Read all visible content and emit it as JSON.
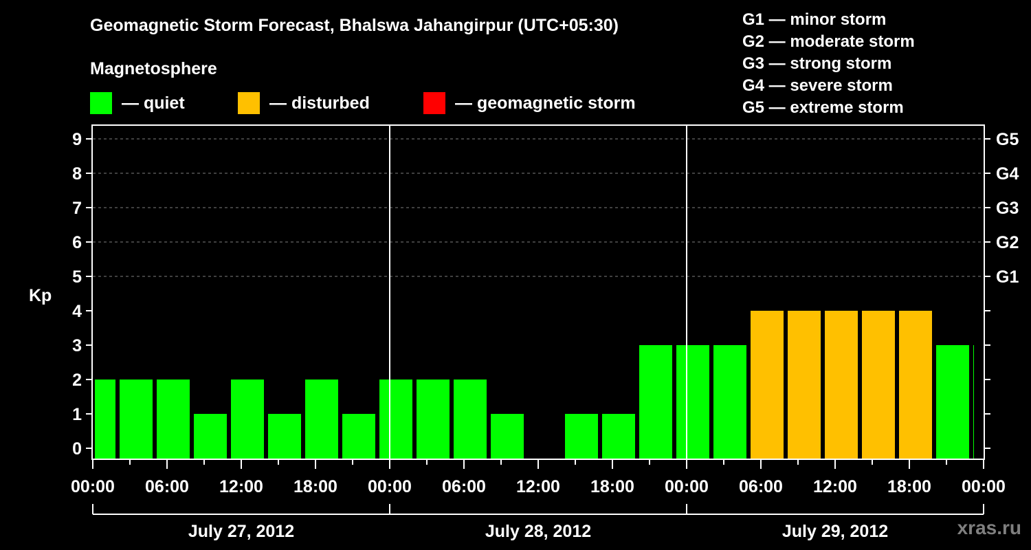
{
  "header": {
    "title": "Geomagnetic Storm Forecast, Bhalswa Jahangirpur (UTC+05:30)",
    "subtitle": "Magnetosphere"
  },
  "legend": {
    "items": [
      {
        "label": "— quiet",
        "color": "#00ff00"
      },
      {
        "label": "— disturbed",
        "color": "#ffc000"
      },
      {
        "label": "— geomagnetic storm",
        "color": "#ff0000"
      }
    ]
  },
  "g_legend": [
    "G1 — minor storm",
    "G2 — moderate storm",
    "G3 — strong storm",
    "G4 — severe storm",
    "G5 — extreme storm"
  ],
  "watermark": "xras.ru",
  "chart_data": {
    "type": "bar",
    "title": "Geomagnetic Storm Forecast, Bhalswa Jahangirpur (UTC+05:30)",
    "ylabel": "Kp",
    "xlabel": "",
    "ylim": [
      0,
      9
    ],
    "y_ticks": [
      0,
      1,
      2,
      3,
      4,
      5,
      6,
      7,
      8,
      9
    ],
    "right_axis_ticks": [
      {
        "kp": 5,
        "label": "G1"
      },
      {
        "kp": 6,
        "label": "G2"
      },
      {
        "kp": 7,
        "label": "G3"
      },
      {
        "kp": 8,
        "label": "G4"
      },
      {
        "kp": 9,
        "label": "G5"
      }
    ],
    "grid": "dashed horizontal at Kp 5-9",
    "x_tick_labels": [
      "00:00",
      "06:00",
      "12:00",
      "18:00",
      "00:00",
      "06:00",
      "12:00",
      "18:00",
      "00:00",
      "06:00",
      "12:00",
      "18:00",
      "00:00"
    ],
    "date_labels": [
      "July 27, 2012",
      "July 28, 2012",
      "July 29, 2012"
    ],
    "bar_interval_hours": 3,
    "categories": [
      "Jul27 00:00-02:00",
      "Jul27 02:00",
      "Jul27 05:00",
      "Jul27 08:00",
      "Jul27 11:00",
      "Jul27 14:00",
      "Jul27 17:00",
      "Jul27 20:00",
      "Jul27 23:00",
      "Jul28 02:00",
      "Jul28 05:00",
      "Jul28 08:00",
      "Jul28 11:00",
      "Jul28 14:00",
      "Jul28 17:00",
      "Jul28 20:00",
      "Jul28 23:00",
      "Jul29 02:00",
      "Jul29 05:00",
      "Jul29 08:00",
      "Jul29 11:00",
      "Jul29 14:00",
      "Jul29 17:00",
      "Jul29 20:00",
      "Jul29 23:00"
    ],
    "values": [
      2,
      2,
      2,
      1,
      2,
      1,
      2,
      1,
      2,
      2,
      2,
      1,
      0,
      1,
      1,
      3,
      3,
      3,
      4,
      4,
      4,
      4,
      4,
      3,
      3
    ],
    "colors": {
      "quiet": "#00ff00",
      "disturbed": "#ffc000",
      "storm": "#ff0000"
    },
    "status": [
      "quiet",
      "quiet",
      "quiet",
      "quiet",
      "quiet",
      "quiet",
      "quiet",
      "quiet",
      "quiet",
      "quiet",
      "quiet",
      "quiet",
      "quiet",
      "quiet",
      "quiet",
      "quiet",
      "quiet",
      "quiet",
      "disturbed",
      "disturbed",
      "disturbed",
      "disturbed",
      "disturbed",
      "quiet",
      "quiet"
    ]
  }
}
